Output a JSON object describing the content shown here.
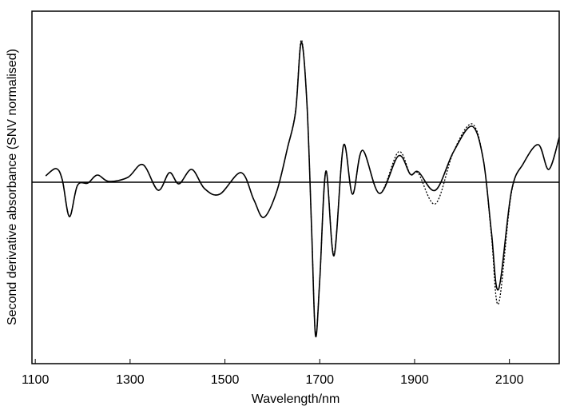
{
  "chart_data": {
    "type": "line",
    "xlabel": "Wavelength/nm",
    "ylabel": "Second derivative absorbance (SNV normalised)",
    "x": [
      1122,
      1144,
      1157,
      1172,
      1189,
      1211,
      1231,
      1255,
      1295,
      1327,
      1359,
      1383,
      1403,
      1430,
      1457,
      1489,
      1534,
      1561,
      1582,
      1609,
      1632,
      1649,
      1661,
      1673,
      1683,
      1691,
      1700,
      1713,
      1730,
      1750,
      1769,
      1790,
      1826,
      1866,
      1891,
      1908,
      1944,
      1982,
      2021,
      2045,
      2062,
      2077,
      2104,
      2129,
      2161,
      2183,
      2205
    ],
    "series": [
      {
        "color": "#000000",
        "line_style": "solid",
        "values": [
          0.08,
          0.17,
          0.03,
          -0.43,
          -0.04,
          -0.01,
          0.09,
          0.01,
          0.06,
          0.22,
          -0.1,
          0.12,
          -0.02,
          0.16,
          -0.08,
          -0.15,
          0.12,
          -0.22,
          -0.44,
          -0.12,
          0.43,
          0.88,
          1.75,
          0.98,
          -0.62,
          -1.92,
          -1.22,
          0.14,
          -0.92,
          0.46,
          -0.15,
          0.4,
          -0.14,
          0.33,
          0.1,
          0.13,
          -0.1,
          0.38,
          0.7,
          0.28,
          -0.62,
          -1.34,
          -0.12,
          0.23,
          0.47,
          0.16,
          0.56
        ]
      },
      {
        "color": "#000000",
        "line_style": "dotted",
        "values": [
          0.08,
          0.17,
          0.03,
          -0.43,
          -0.04,
          -0.01,
          0.09,
          0.01,
          0.06,
          0.22,
          -0.1,
          0.12,
          -0.02,
          0.16,
          -0.08,
          -0.15,
          0.12,
          -0.22,
          -0.44,
          -0.12,
          0.43,
          0.9,
          1.78,
          0.98,
          -0.62,
          -1.9,
          -1.22,
          0.14,
          -0.9,
          0.46,
          -0.15,
          0.4,
          -0.14,
          0.38,
          0.1,
          0.11,
          -0.27,
          0.38,
          0.73,
          0.28,
          -0.66,
          -1.52,
          -0.14,
          0.23,
          0.47,
          0.16,
          0.56
        ]
      }
    ],
    "hline": 0,
    "xlim": [
      1093,
      2205
    ],
    "ylim": [
      -2.27,
      2.14
    ],
    "xticks": [
      1100,
      1300,
      1500,
      1700,
      1900,
      2100
    ]
  }
}
